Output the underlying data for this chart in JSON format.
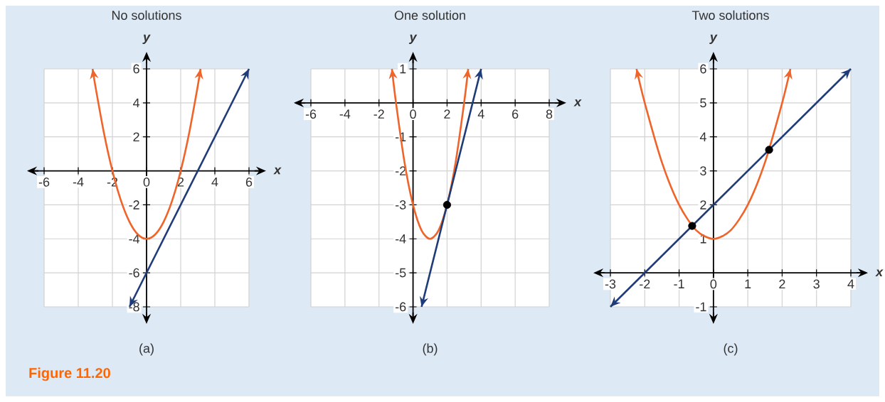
{
  "chart_data": [
    {
      "type": "line",
      "title": "No solutions",
      "xlabel": "x",
      "ylabel": "y",
      "xlim": [
        -6,
        6
      ],
      "ylim": [
        -8,
        6
      ],
      "xticks": [
        -6,
        -4,
        -2,
        0,
        2,
        4,
        6
      ],
      "yticks": [
        -8,
        -6,
        -4,
        -2,
        2,
        4,
        6
      ],
      "grid": true,
      "series": [
        {
          "color": "#f0642a",
          "marker": "none",
          "x": [
            -3.16,
            -3,
            -2.5,
            -2,
            -1.5,
            -1,
            -0.5,
            0,
            0.5,
            1,
            1.5,
            2,
            2.5,
            3,
            3.16
          ],
          "values": [
            6,
            5,
            2.25,
            0,
            -1.75,
            -3,
            -3.75,
            -4,
            -3.75,
            -3,
            -1.75,
            0,
            2.25,
            5,
            6
          ]
        },
        {
          "color": "#1f3c78",
          "marker": "none",
          "x": [
            -1,
            6
          ],
          "values": [
            -8,
            6
          ]
        }
      ],
      "annotations": [
        "(a)",
        "Figure 11.20"
      ]
    },
    {
      "type": "line",
      "title": "One solution",
      "xlabel": "x",
      "ylabel": "y",
      "xlim": [
        -6,
        8
      ],
      "ylim": [
        -6,
        1
      ],
      "xticks": [
        -6,
        -4,
        -2,
        0,
        2,
        4,
        6,
        8
      ],
      "yticks": [
        -6,
        -5,
        -4,
        -3,
        -2,
        -1,
        1
      ],
      "grid": true,
      "series": [
        {
          "color": "#f0642a",
          "marker": "none",
          "x": [
            -1.24,
            -1,
            -0.5,
            0,
            0.5,
            1,
            1.5,
            2,
            2.5,
            3,
            3.24
          ],
          "values": [
            1,
            0,
            -1.75,
            -3,
            -3.75,
            -4,
            -3.75,
            -3,
            -1.75,
            0,
            1
          ]
        },
        {
          "color": "#1f3c78",
          "marker": "none",
          "x": [
            0.5,
            4
          ],
          "values": [
            -6,
            1
          ]
        },
        {
          "type": "scatter",
          "color": "#000000",
          "marker": "circle",
          "x": [
            2
          ],
          "values": [
            -3
          ]
        }
      ],
      "annotations": [
        "(b)"
      ]
    },
    {
      "type": "line",
      "title": "Two solutions",
      "xlabel": "x",
      "ylabel": "y",
      "xlim": [
        -3,
        4
      ],
      "ylim": [
        -1,
        6
      ],
      "xticks": [
        -3,
        -2,
        -1,
        0,
        1,
        2,
        3,
        4
      ],
      "yticks": [
        -1,
        1,
        2,
        3,
        4,
        5,
        6
      ],
      "grid": true,
      "series": [
        {
          "color": "#f0642a",
          "marker": "none",
          "x": [
            -2.24,
            -2,
            -1.5,
            -1,
            -0.5,
            0,
            0.5,
            1,
            1.5,
            2,
            2.24
          ],
          "values": [
            6,
            5,
            3.25,
            2,
            1.25,
            1,
            1.25,
            2,
            3.25,
            5,
            6
          ]
        },
        {
          "color": "#1f3c78",
          "marker": "none",
          "x": [
            -3,
            4
          ],
          "values": [
            -1,
            6
          ]
        },
        {
          "type": "scatter",
          "color": "#000000",
          "marker": "circle",
          "x": [
            -0.62,
            1.62
          ],
          "values": [
            1.38,
            3.62
          ]
        }
      ],
      "annotations": [
        "(c)"
      ]
    }
  ]
}
